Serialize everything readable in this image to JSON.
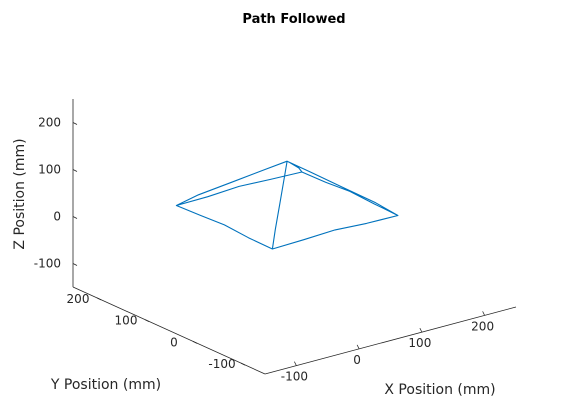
{
  "chart_data": {
    "type": "line3d",
    "title": "Path Followed",
    "xlabel": "X Position (mm)",
    "ylabel": "Y Position (mm)",
    "zlabel": "Z Position (mm)",
    "xlim": [
      -150,
      250
    ],
    "ylim": [
      -150,
      250
    ],
    "zlim": [
      -150,
      250
    ],
    "xticks": [
      -100,
      0,
      100,
      200
    ],
    "yticks": [
      -100,
      0,
      100,
      200
    ],
    "zticks": [
      -100,
      0,
      100,
      200
    ],
    "grid": false,
    "line_color": "#0072BD",
    "series": [
      {
        "name": "",
        "points": [
          [
            -100,
            100,
            75
          ],
          [
            -50,
            100,
            76
          ],
          [
            0,
            100,
            80
          ],
          [
            50,
            100,
            77
          ],
          [
            100,
            100,
            75
          ],
          [
            100,
            50,
            76
          ],
          [
            100,
            0,
            80
          ],
          [
            100,
            -50,
            77
          ],
          [
            100,
            -100,
            75
          ],
          [
            50,
            -100,
            76
          ],
          [
            0,
            -100,
            80
          ],
          [
            -50,
            -100,
            77
          ],
          [
            -100,
            -100,
            75
          ],
          [
            -100,
            -50,
            76
          ],
          [
            -100,
            0,
            80
          ],
          [
            -100,
            50,
            77
          ],
          [
            -100,
            100,
            75
          ],
          [
            -80,
            80,
            100
          ],
          [
            -50,
            50,
            130
          ],
          [
            -20,
            20,
            160
          ],
          [
            0,
            0,
            180
          ],
          [
            20,
            20,
            160
          ],
          [
            50,
            50,
            130
          ],
          [
            80,
            80,
            100
          ],
          [
            100,
            100,
            75
          ],
          [
            100,
            100,
            75
          ],
          [
            80,
            80,
            100
          ],
          [
            50,
            50,
            130
          ],
          [
            20,
            20,
            160
          ],
          [
            0,
            0,
            180
          ],
          [
            20,
            -20,
            160
          ],
          [
            50,
            -50,
            130
          ],
          [
            80,
            -80,
            100
          ],
          [
            100,
            -100,
            75
          ],
          [
            80,
            -80,
            100
          ],
          [
            50,
            -50,
            130
          ],
          [
            20,
            -20,
            160
          ],
          [
            0,
            0,
            180
          ],
          [
            -20,
            -20,
            160
          ],
          [
            -50,
            -50,
            130
          ],
          [
            -80,
            -80,
            100
          ],
          [
            -100,
            -100,
            75
          ],
          [
            -80,
            -80,
            100
          ],
          [
            -50,
            -50,
            130
          ],
          [
            -20,
            -20,
            160
          ],
          [
            0,
            0,
            180
          ],
          [
            -20,
            20,
            160
          ],
          [
            -50,
            50,
            130
          ],
          [
            -80,
            80,
            100
          ],
          [
            -100,
            100,
            75
          ]
        ]
      }
    ]
  }
}
